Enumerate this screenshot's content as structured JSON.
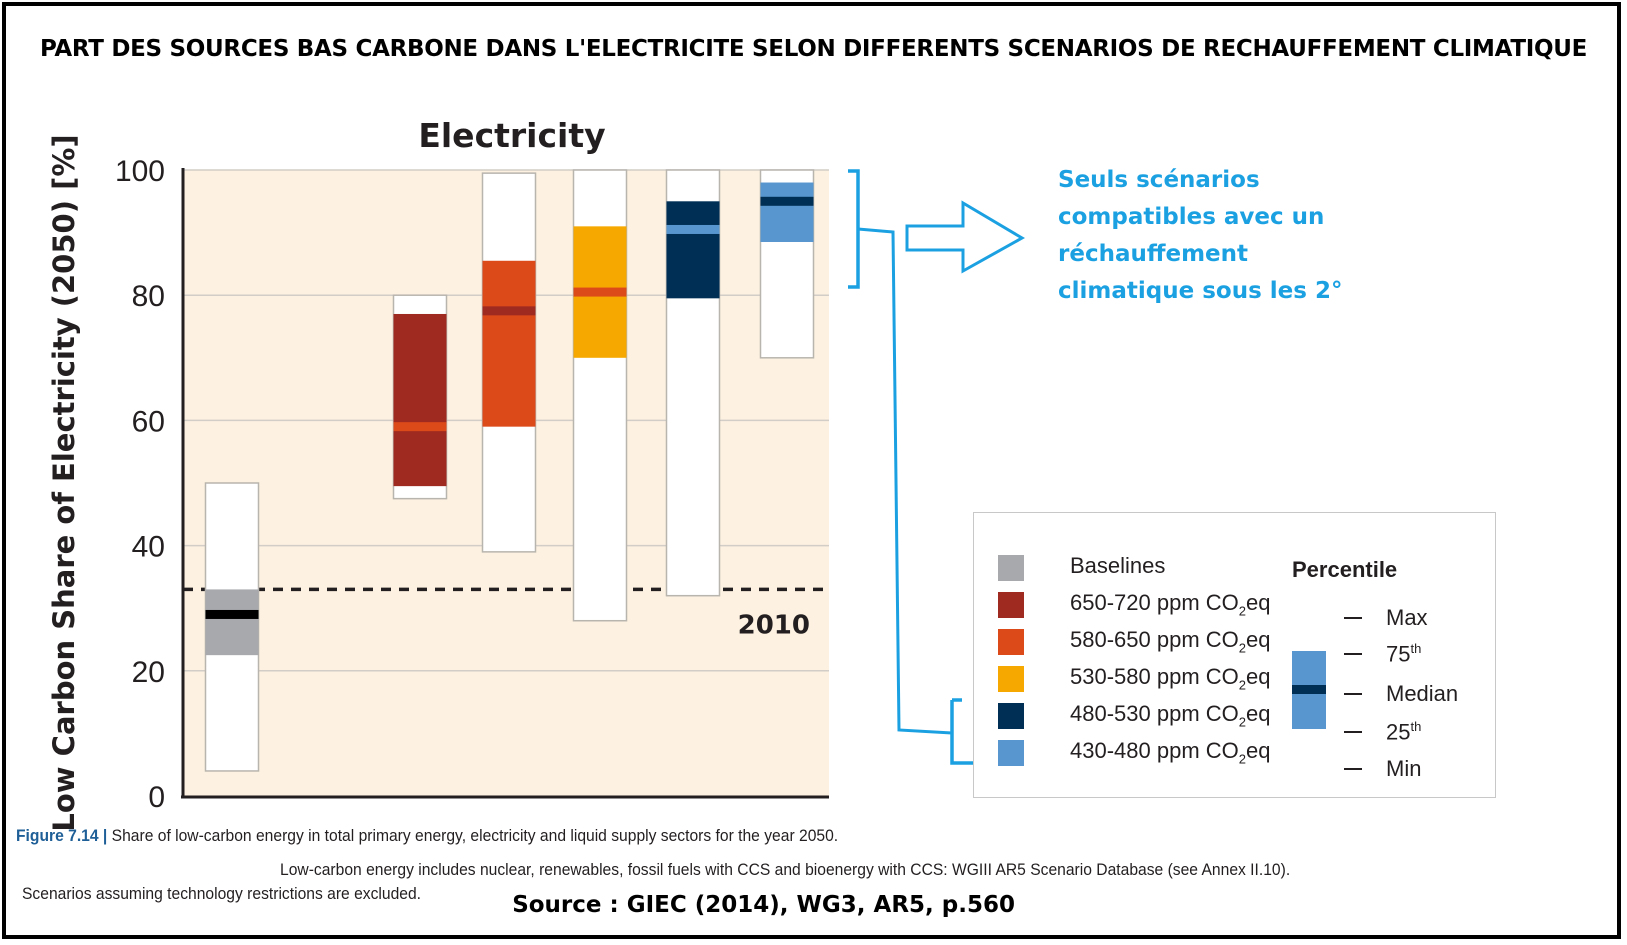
{
  "main_title": "PART DES SOURCES BAS CARBONE DANS L'ELECTRICITE SELON DIFFERENTS SCENARIOS DE RECHAUFFEMENT CLIMATIQUE",
  "chart_data": {
    "type": "box",
    "title": "Electricity",
    "ylabel": "Low Carbon Share of Electricity (2050) [%]",
    "ylim": [
      0,
      100
    ],
    "yticks": [
      "0",
      "20",
      "40",
      "60",
      "80",
      "100"
    ],
    "grid": true,
    "reference_line": {
      "label": "2010",
      "value": 33
    },
    "series": [
      {
        "name": "Baselines",
        "color": "#a7a9ac",
        "min": 4,
        "p25": 22.5,
        "median": 29,
        "p75": 33,
        "max": 50
      },
      {
        "name": "650-720 ppm CO2eq",
        "color": "#9e2a20",
        "min": 47.5,
        "p25": 49.5,
        "median": 59,
        "p75": 77,
        "max": 80
      },
      {
        "name": "580-650 ppm CO2eq",
        "color": "#dd4a1a",
        "min": 39,
        "p25": 59,
        "median": 77.5,
        "p75": 85.5,
        "max": 99.5
      },
      {
        "name": "530-580 ppm CO2eq",
        "color": "#f7a800",
        "min": 28,
        "p25": 70,
        "median": 80.5,
        "p75": 91,
        "max": 100
      },
      {
        "name": "480-530 ppm CO2eq",
        "color": "#002f55",
        "min": 32,
        "p25": 79.5,
        "median": 90.5,
        "p75": 95,
        "max": 100
      },
      {
        "name": "430-480 ppm CO2eq",
        "color": "#5896cf",
        "min": 70,
        "p25": 88.5,
        "median": 95,
        "p75": 98,
        "max": 100
      }
    ]
  },
  "legend": {
    "items": [
      {
        "label": "Baselines",
        "sub": "",
        "suffix": "",
        "color": "#a7a9ac"
      },
      {
        "label": "650-720 ppm CO",
        "sub": "2",
        "suffix": "eq",
        "color": "#9e2a20"
      },
      {
        "label": "580-650 ppm CO",
        "sub": "2",
        "suffix": "eq",
        "color": "#dd4a1a"
      },
      {
        "label": "530-580 ppm CO",
        "sub": "2",
        "suffix": "eq",
        "color": "#f7a800"
      },
      {
        "label": "480-530 ppm CO",
        "sub": "2",
        "suffix": "eq",
        "color": "#002f55"
      },
      {
        "label": "430-480 ppm CO",
        "sub": "2",
        "suffix": "eq",
        "color": "#5896cf"
      }
    ],
    "percentile_title": "Percentile",
    "percentiles": [
      {
        "label": "Max",
        "sup": ""
      },
      {
        "label": "75",
        "sup": "th"
      },
      {
        "label": "Median",
        "sup": ""
      },
      {
        "label": "25",
        "sup": "th"
      },
      {
        "label": "Min",
        "sup": ""
      }
    ]
  },
  "annotation": {
    "text": "Seuls scénarios compatibles avec un réchauffement climatique sous les 2°",
    "color": "#1ba1e2"
  },
  "caption": {
    "figure_label": "Figure 7.14 |",
    "line1": "Share of low-carbon energy in total primary energy, electricity and liquid supply sectors for the year 2050.",
    "line2": "Low-carbon energy includes nuclear, renewables, fossil fuels with CCS and bioenergy with CCS: WGIII AR5 Scenario Database (see Annex II.10).",
    "line3": "Scenarios assuming technology restrictions are excluded."
  },
  "source": "Source : GIEC (2014), WG3, AR5, p.560",
  "colors": {
    "plot_background": "#fdf1e1",
    "grid": "#d2cdc6",
    "axis": "#231f20"
  }
}
